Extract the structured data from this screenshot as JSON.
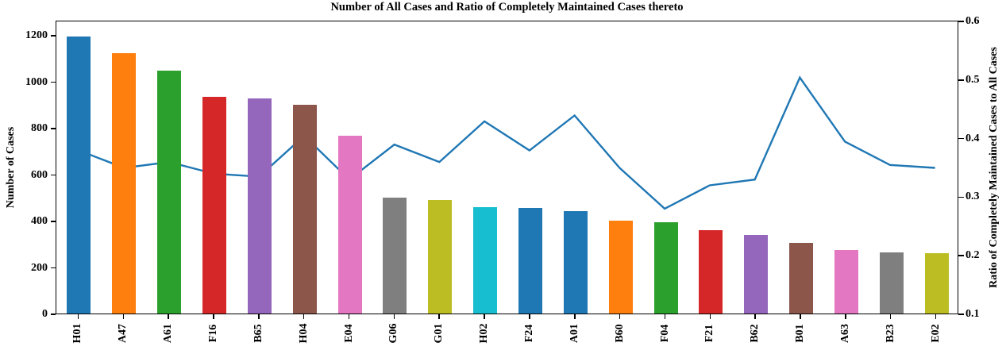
{
  "title": "Number of All Cases and Ratio of Completely Maintained Cases thereto",
  "chart_data": {
    "type": "bar",
    "title": "Number of All Cases and Ratio of Completely Maintained Cases thereto",
    "categories": [
      "H01",
      "A47",
      "A61",
      "F16",
      "B65",
      "H04",
      "E04",
      "G06",
      "G01",
      "H02",
      "F24",
      "A01",
      "B60",
      "F04",
      "F21",
      "B62",
      "B01",
      "A63",
      "B23",
      "E02"
    ],
    "series": [
      {
        "name": "Number of All Cases",
        "type": "bar",
        "yaxis": "left",
        "values": [
          1195,
          1120,
          1045,
          935,
          925,
          900,
          765,
          500,
          490,
          460,
          455,
          440,
          400,
          395,
          360,
          340,
          305,
          275,
          262,
          260
        ],
        "bar_colors": [
          "#1f77b4",
          "#ff7f0e",
          "#2ca02c",
          "#d62728",
          "#9467bd",
          "#8c564b",
          "#e377c2",
          "#7f7f7f",
          "#bcbd22",
          "#17becf",
          "#1f77b4",
          "#1f77b4",
          "#ff7f0e",
          "#2ca02c",
          "#d62728",
          "#9467bd",
          "#8c564b",
          "#e377c2",
          "#7f7f7f",
          "#bcbd22"
        ]
      },
      {
        "name": "Ratio of Completely Maintained Cases to All Cases",
        "type": "line",
        "yaxis": "right",
        "color": "#1f77b4",
        "values": [
          0.38,
          0.35,
          0.36,
          0.34,
          0.335,
          0.405,
          0.33,
          0.39,
          0.36,
          0.43,
          0.38,
          0.44,
          0.35,
          0.28,
          0.32,
          0.33,
          0.505,
          0.395,
          0.355,
          0.35
        ]
      }
    ],
    "left_axis": {
      "label": "Number of Cases",
      "ticks": [
        0,
        200,
        400,
        600,
        800,
        1000,
        1200
      ],
      "range": [
        0,
        1265
      ]
    },
    "right_axis": {
      "label": "Ratio of Completely Maintained Cases to All Cases",
      "ticks": [
        0.1,
        0.2,
        0.3,
        0.4,
        0.5,
        0.6
      ],
      "range": [
        0.1,
        0.6
      ]
    },
    "grid": false,
    "legend": "none"
  },
  "colors": {
    "axis": "#000000",
    "background": "#ffffff",
    "line": "#1f77b4"
  }
}
